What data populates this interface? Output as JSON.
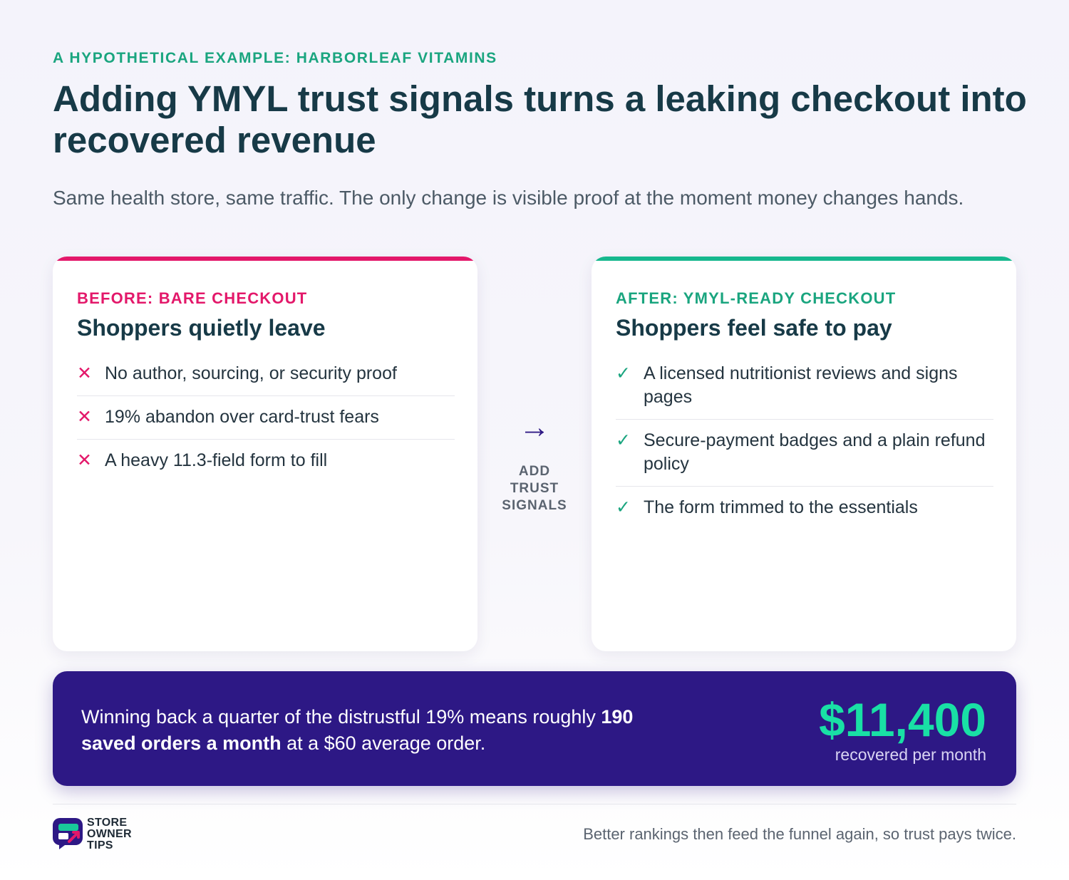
{
  "eyebrow": "A HYPOTHETICAL EXAMPLE: HARBORLEAF VITAMINS",
  "title": "Adding YMYL trust signals turns a leaking checkout into recovered revenue",
  "subtitle": "Same health store, same traffic. The only change is visible proof at the moment money changes hands.",
  "before": {
    "tag": "BEFORE: BARE CHECKOUT",
    "heading": "Shoppers quietly leave",
    "mark_icon": "x-icon",
    "items": [
      "No author, sourcing, or security proof",
      "19% abandon over card-trust fears",
      "A heavy 11.3-field form to fill"
    ]
  },
  "transition": {
    "icon": "arrow-right-icon",
    "label_line1": "ADD",
    "label_line2": "TRUST",
    "label_line3": "SIGNALS"
  },
  "after": {
    "tag": "AFTER: YMYL-READY CHECKOUT",
    "heading": "Shoppers feel safe to pay",
    "mark_icon": "check-icon",
    "items": [
      "A licensed nutritionist reviews and signs pages",
      "Secure-payment badges and a plain refund policy",
      "The form trimmed to the essentials"
    ]
  },
  "banner": {
    "text_part1": "Winning back a quarter of the distrustful 19% means roughly ",
    "text_bold": "190 saved orders a month",
    "text_part2": " at a $60 average order.",
    "value": "$11,400",
    "caption": "recovered per month"
  },
  "footer": {
    "logo_line1": "STORE",
    "logo_line2": "OWNER",
    "logo_line3": "TIPS",
    "note": "Better rankings then feed the funnel again, so trust pays twice."
  },
  "colors": {
    "before_accent": "#e3186a",
    "after_accent": "#16b88e",
    "banner_bg": "#2d1885",
    "value_color": "#19e0a5"
  }
}
